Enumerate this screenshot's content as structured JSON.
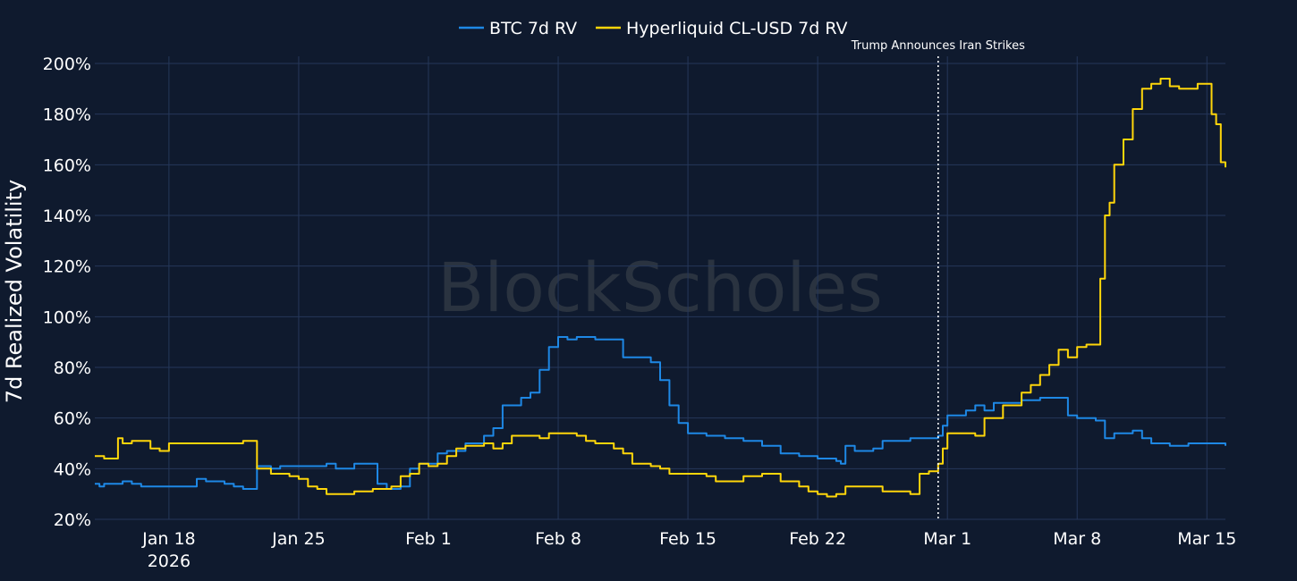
{
  "colors": {
    "background": "#0f1a2e",
    "grid": "#25375a",
    "btc": "#1e88e5",
    "cl": "#ffd60a"
  },
  "watermark": "BlockScholes",
  "chart_data": {
    "type": "line",
    "ylabel": "7d Realized Volatility",
    "xlabel": "",
    "xlim": [
      "2026-01-14T00:00",
      "2026-03-16T00:00"
    ],
    "ylim": [
      20,
      200
    ],
    "yticks": [
      20,
      40,
      60,
      80,
      100,
      120,
      140,
      160,
      180,
      200
    ],
    "ytick_labels": [
      "20%",
      "40%",
      "60%",
      "80%",
      "100%",
      "120%",
      "140%",
      "160%",
      "180%",
      "200%"
    ],
    "xticks": [
      {
        "date": "2026-01-18",
        "label": "Jan 18",
        "sublabel": "2026"
      },
      {
        "date": "2026-01-25",
        "label": "Jan 25",
        "sublabel": ""
      },
      {
        "date": "2026-02-01",
        "label": "Feb 1",
        "sublabel": ""
      },
      {
        "date": "2026-02-08",
        "label": "Feb 8",
        "sublabel": ""
      },
      {
        "date": "2026-02-15",
        "label": "Feb 15",
        "sublabel": ""
      },
      {
        "date": "2026-02-22",
        "label": "Feb 22",
        "sublabel": ""
      },
      {
        "date": "2026-03-01",
        "label": "Mar 1",
        "sublabel": ""
      },
      {
        "date": "2026-03-08",
        "label": "Mar 8",
        "sublabel": ""
      },
      {
        "date": "2026-03-15",
        "label": "Mar 15",
        "sublabel": ""
      }
    ],
    "grid": true,
    "legend_position": "top-center",
    "annotation": {
      "date": "2026-02-28T12:00",
      "text": "Trump Announces Iran Strikes",
      "style": "dotted-vertical-line"
    },
    "series": [
      {
        "name": "BTC 7d RV",
        "color": "#1e88e5",
        "points": [
          [
            "2026-01-14T00:00",
            34
          ],
          [
            "2026-01-14T06:00",
            33
          ],
          [
            "2026-01-14T12:00",
            34
          ],
          [
            "2026-01-15T00:00",
            34
          ],
          [
            "2026-01-15T12:00",
            35
          ],
          [
            "2026-01-16T00:00",
            34
          ],
          [
            "2026-01-16T12:00",
            33
          ],
          [
            "2026-01-17T00:00",
            33
          ],
          [
            "2026-01-18T00:00",
            33
          ],
          [
            "2026-01-19T00:00",
            33
          ],
          [
            "2026-01-19T12:00",
            36
          ],
          [
            "2026-01-20T00:00",
            35
          ],
          [
            "2026-01-21T00:00",
            34
          ],
          [
            "2026-01-21T12:00",
            33
          ],
          [
            "2026-01-22T00:00",
            32
          ],
          [
            "2026-01-22T12:00",
            32
          ],
          [
            "2026-01-22T18:00",
            41
          ],
          [
            "2026-01-23T12:00",
            40
          ],
          [
            "2026-01-24T00:00",
            41
          ],
          [
            "2026-01-25T00:00",
            41
          ],
          [
            "2026-01-26T00:00",
            41
          ],
          [
            "2026-01-26T12:00",
            42
          ],
          [
            "2026-01-27T00:00",
            40
          ],
          [
            "2026-01-28T00:00",
            42
          ],
          [
            "2026-01-29T00:00",
            42
          ],
          [
            "2026-01-29T06:00",
            34
          ],
          [
            "2026-01-29T18:00",
            32
          ],
          [
            "2026-01-30T12:00",
            33
          ],
          [
            "2026-01-31T00:00",
            40
          ],
          [
            "2026-01-31T12:00",
            42
          ],
          [
            "2026-02-01T00:00",
            42
          ],
          [
            "2026-02-01T12:00",
            46
          ],
          [
            "2026-02-02T00:00",
            47
          ],
          [
            "2026-02-03T00:00",
            50
          ],
          [
            "2026-02-04T00:00",
            53
          ],
          [
            "2026-02-04T12:00",
            56
          ],
          [
            "2026-02-05T00:00",
            65
          ],
          [
            "2026-02-06T00:00",
            68
          ],
          [
            "2026-02-06T12:00",
            70
          ],
          [
            "2026-02-07T00:00",
            79
          ],
          [
            "2026-02-07T12:00",
            88
          ],
          [
            "2026-02-08T00:00",
            92
          ],
          [
            "2026-02-08T12:00",
            91
          ],
          [
            "2026-02-09T00:00",
            92
          ],
          [
            "2026-02-10T00:00",
            91
          ],
          [
            "2026-02-11T00:00",
            91
          ],
          [
            "2026-02-11T12:00",
            84
          ],
          [
            "2026-02-12T00:00",
            84
          ],
          [
            "2026-02-13T00:00",
            82
          ],
          [
            "2026-02-13T12:00",
            75
          ],
          [
            "2026-02-14T00:00",
            65
          ],
          [
            "2026-02-14T12:00",
            58
          ],
          [
            "2026-02-15T00:00",
            54
          ],
          [
            "2026-02-16T00:00",
            53
          ],
          [
            "2026-02-17T00:00",
            52
          ],
          [
            "2026-02-18T00:00",
            51
          ],
          [
            "2026-02-19T00:00",
            49
          ],
          [
            "2026-02-20T00:00",
            46
          ],
          [
            "2026-02-21T00:00",
            45
          ],
          [
            "2026-02-22T00:00",
            44
          ],
          [
            "2026-02-23T00:00",
            43
          ],
          [
            "2026-02-23T06:00",
            42
          ],
          [
            "2026-02-23T12:00",
            49
          ],
          [
            "2026-02-24T00:00",
            47
          ],
          [
            "2026-02-25T00:00",
            48
          ],
          [
            "2026-02-25T12:00",
            51
          ],
          [
            "2026-02-26T00:00",
            51
          ],
          [
            "2026-02-27T00:00",
            52
          ],
          [
            "2026-02-28T00:00",
            52
          ],
          [
            "2026-02-28T12:00",
            53
          ],
          [
            "2026-02-28T18:00",
            57
          ],
          [
            "2026-03-01T00:00",
            61
          ],
          [
            "2026-03-02T00:00",
            63
          ],
          [
            "2026-03-02T12:00",
            65
          ],
          [
            "2026-03-03T00:00",
            63
          ],
          [
            "2026-03-03T12:00",
            66
          ],
          [
            "2026-03-04T00:00",
            66
          ],
          [
            "2026-03-05T00:00",
            67
          ],
          [
            "2026-03-06T00:00",
            68
          ],
          [
            "2026-03-07T00:00",
            68
          ],
          [
            "2026-03-07T12:00",
            61
          ],
          [
            "2026-03-08T00:00",
            60
          ],
          [
            "2026-03-09T00:00",
            59
          ],
          [
            "2026-03-09T12:00",
            52
          ],
          [
            "2026-03-10T00:00",
            54
          ],
          [
            "2026-03-11T00:00",
            55
          ],
          [
            "2026-03-11T12:00",
            52
          ],
          [
            "2026-03-12T00:00",
            50
          ],
          [
            "2026-03-13T00:00",
            49
          ],
          [
            "2026-03-14T00:00",
            50
          ],
          [
            "2026-03-15T00:00",
            50
          ],
          [
            "2026-03-16T00:00",
            49
          ]
        ]
      },
      {
        "name": "Hyperliquid CL-USD 7d RV",
        "color": "#ffd60a",
        "points": [
          [
            "2026-01-14T00:00",
            45
          ],
          [
            "2026-01-14T12:00",
            44
          ],
          [
            "2026-01-15T00:00",
            44
          ],
          [
            "2026-01-15T06:00",
            52
          ],
          [
            "2026-01-15T12:00",
            50
          ],
          [
            "2026-01-16T00:00",
            51
          ],
          [
            "2026-01-17T00:00",
            48
          ],
          [
            "2026-01-17T12:00",
            47
          ],
          [
            "2026-01-18T00:00",
            50
          ],
          [
            "2026-01-19T00:00",
            50
          ],
          [
            "2026-01-20T00:00",
            50
          ],
          [
            "2026-01-21T00:00",
            50
          ],
          [
            "2026-01-22T00:00",
            51
          ],
          [
            "2026-01-22T12:00",
            51
          ],
          [
            "2026-01-22T18:00",
            40
          ],
          [
            "2026-01-23T12:00",
            38
          ],
          [
            "2026-01-24T12:00",
            37
          ],
          [
            "2026-01-25T00:00",
            36
          ],
          [
            "2026-01-25T12:00",
            33
          ],
          [
            "2026-01-26T00:00",
            32
          ],
          [
            "2026-01-26T12:00",
            30
          ],
          [
            "2026-01-27T00:00",
            30
          ],
          [
            "2026-01-28T00:00",
            31
          ],
          [
            "2026-01-29T00:00",
            32
          ],
          [
            "2026-01-30T00:00",
            33
          ],
          [
            "2026-01-30T12:00",
            37
          ],
          [
            "2026-01-31T00:00",
            38
          ],
          [
            "2026-01-31T12:00",
            42
          ],
          [
            "2026-02-01T00:00",
            41
          ],
          [
            "2026-02-01T12:00",
            42
          ],
          [
            "2026-02-02T00:00",
            45
          ],
          [
            "2026-02-02T12:00",
            48
          ],
          [
            "2026-02-03T00:00",
            49
          ],
          [
            "2026-02-04T00:00",
            50
          ],
          [
            "2026-02-04T12:00",
            48
          ],
          [
            "2026-02-05T00:00",
            50
          ],
          [
            "2026-02-05T12:00",
            53
          ],
          [
            "2026-02-06T00:00",
            53
          ],
          [
            "2026-02-07T00:00",
            52
          ],
          [
            "2026-02-07T12:00",
            54
          ],
          [
            "2026-02-08T00:00",
            54
          ],
          [
            "2026-02-09T00:00",
            53
          ],
          [
            "2026-02-09T12:00",
            51
          ],
          [
            "2026-02-10T00:00",
            50
          ],
          [
            "2026-02-11T00:00",
            48
          ],
          [
            "2026-02-11T12:00",
            46
          ],
          [
            "2026-02-12T00:00",
            42
          ],
          [
            "2026-02-13T00:00",
            41
          ],
          [
            "2026-02-13T12:00",
            40
          ],
          [
            "2026-02-14T00:00",
            38
          ],
          [
            "2026-02-15T00:00",
            38
          ],
          [
            "2026-02-16T00:00",
            37
          ],
          [
            "2026-02-16T12:00",
            35
          ],
          [
            "2026-02-17T00:00",
            35
          ],
          [
            "2026-02-18T00:00",
            37
          ],
          [
            "2026-02-19T00:00",
            38
          ],
          [
            "2026-02-20T00:00",
            35
          ],
          [
            "2026-02-21T00:00",
            33
          ],
          [
            "2026-02-21T12:00",
            31
          ],
          [
            "2026-02-22T00:00",
            30
          ],
          [
            "2026-02-22T12:00",
            29
          ],
          [
            "2026-02-23T00:00",
            30
          ],
          [
            "2026-02-23T12:00",
            33
          ],
          [
            "2026-02-24T00:00",
            33
          ],
          [
            "2026-02-25T00:00",
            33
          ],
          [
            "2026-02-25T12:00",
            31
          ],
          [
            "2026-02-26T00:00",
            31
          ],
          [
            "2026-02-26T12:00",
            31
          ],
          [
            "2026-02-27T00:00",
            30
          ],
          [
            "2026-02-27T12:00",
            38
          ],
          [
            "2026-02-28T00:00",
            39
          ],
          [
            "2026-02-28T12:00",
            42
          ],
          [
            "2026-02-28T18:00",
            48
          ],
          [
            "2026-03-01T00:00",
            54
          ],
          [
            "2026-03-02T00:00",
            54
          ],
          [
            "2026-03-02T12:00",
            53
          ],
          [
            "2026-03-03T00:00",
            60
          ],
          [
            "2026-03-04T00:00",
            65
          ],
          [
            "2026-03-05T00:00",
            70
          ],
          [
            "2026-03-05T12:00",
            73
          ],
          [
            "2026-03-06T00:00",
            77
          ],
          [
            "2026-03-06T12:00",
            81
          ],
          [
            "2026-03-07T00:00",
            87
          ],
          [
            "2026-03-07T12:00",
            84
          ],
          [
            "2026-03-08T00:00",
            88
          ],
          [
            "2026-03-08T12:00",
            89
          ],
          [
            "2026-03-09T00:00",
            89
          ],
          [
            "2026-03-09T06:00",
            115
          ],
          [
            "2026-03-09T12:00",
            140
          ],
          [
            "2026-03-09T18:00",
            145
          ],
          [
            "2026-03-10T00:00",
            160
          ],
          [
            "2026-03-10T12:00",
            170
          ],
          [
            "2026-03-11T00:00",
            182
          ],
          [
            "2026-03-11T12:00",
            190
          ],
          [
            "2026-03-12T00:00",
            192
          ],
          [
            "2026-03-12T12:00",
            194
          ],
          [
            "2026-03-13T00:00",
            191
          ],
          [
            "2026-03-13T12:00",
            190
          ],
          [
            "2026-03-14T00:00",
            190
          ],
          [
            "2026-03-14T12:00",
            192
          ],
          [
            "2026-03-15T00:00",
            192
          ],
          [
            "2026-03-15T06:00",
            180
          ],
          [
            "2026-03-15T12:00",
            176
          ],
          [
            "2026-03-15T18:00",
            161
          ],
          [
            "2026-03-16T00:00",
            159
          ]
        ]
      }
    ]
  }
}
